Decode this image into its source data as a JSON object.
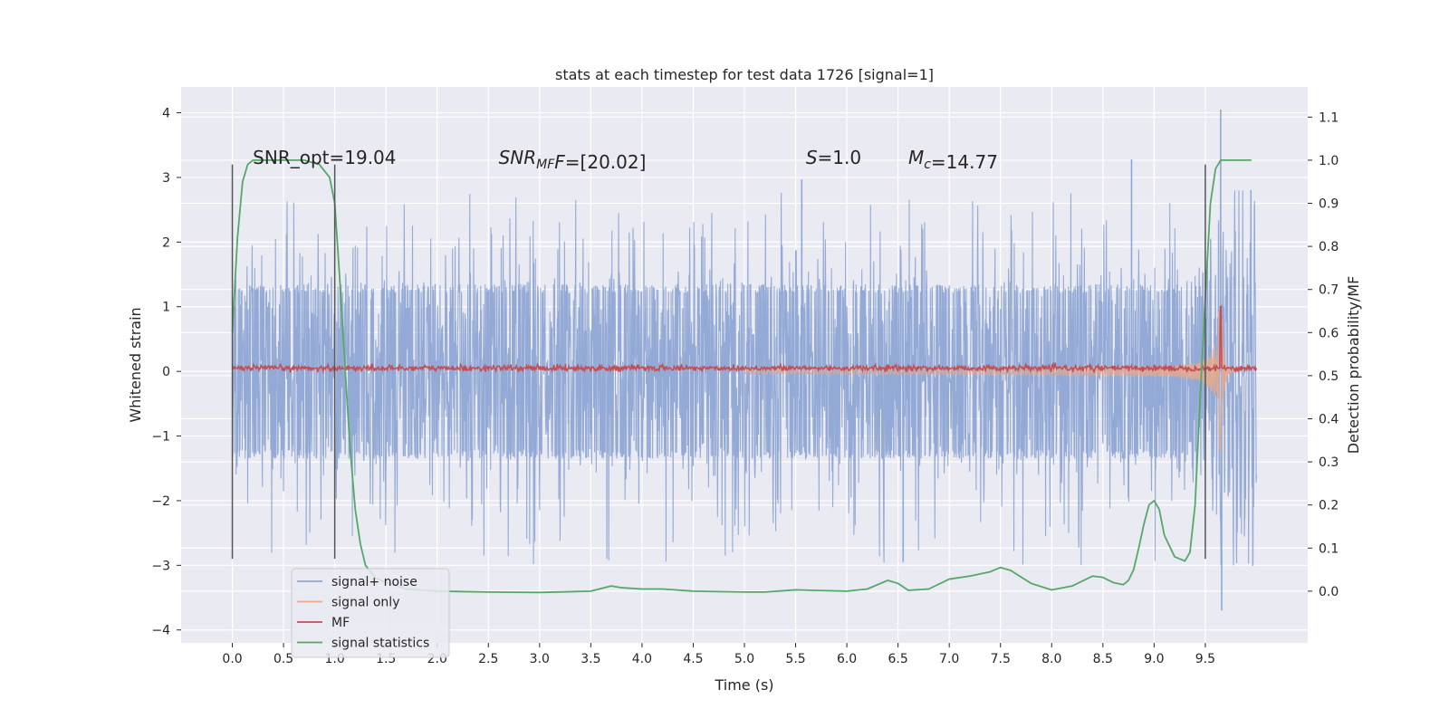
{
  "chart_data": {
    "type": "line",
    "title": "stats at each timestep for test data 1726 [signal=1]",
    "xlabel": "Time (s)",
    "ylabel": "Whitened strain",
    "y2label": "Detection probability/MF",
    "xlim": [
      -0.5,
      10.5
    ],
    "ylim": [
      -4.2,
      4.4
    ],
    "y2lim": [
      -0.12,
      1.17
    ],
    "xticks": [
      0.0,
      0.5,
      1.0,
      1.5,
      2.0,
      2.5,
      3.0,
      3.5,
      4.0,
      4.5,
      5.0,
      5.5,
      6.0,
      6.5,
      7.0,
      7.5,
      8.0,
      8.5,
      9.0,
      9.5
    ],
    "xtick_labels": [
      "0.0",
      "0.5",
      "1.0",
      "1.5",
      "2.0",
      "2.5",
      "3.0",
      "3.5",
      "4.0",
      "4.5",
      "5.0",
      "5.5",
      "6.0",
      "6.5",
      "7.0",
      "7.5",
      "8.0",
      "8.5",
      "9.0",
      "9.5"
    ],
    "yticks": [
      -4,
      -3,
      -2,
      -1,
      0,
      1,
      2,
      3,
      4
    ],
    "ytick_labels": [
      "−4",
      "−3",
      "−2",
      "−1",
      "0",
      "1",
      "2",
      "3",
      "4"
    ],
    "y2ticks": [
      0.0,
      0.1,
      0.2,
      0.3,
      0.4,
      0.5,
      0.6,
      0.7,
      0.8,
      0.9,
      1.0,
      1.1
    ],
    "y2tick_labels": [
      "0.0",
      "0.1",
      "0.2",
      "0.3",
      "0.4",
      "0.5",
      "0.6",
      "0.7",
      "0.8",
      "0.9",
      "1.0",
      "1.1"
    ],
    "grid": true,
    "legend_position": "lower-left",
    "annotations": [
      {
        "parts": [
          {
            "t": "SNR_opt=19.04",
            "i": false
          }
        ],
        "x": 0.2,
        "y": 3.15
      },
      {
        "parts": [
          {
            "t": "SNR",
            "i": true
          },
          {
            "t": "MF",
            "i": true,
            "sub": true
          },
          {
            "t": "F",
            "i": true
          },
          {
            "t": "=[20.02]",
            "i": false
          }
        ],
        "x": 2.6,
        "y": 3.15
      },
      {
        "parts": [
          {
            "t": "S",
            "i": true
          },
          {
            "t": "=1.0",
            "i": false
          }
        ],
        "x": 5.6,
        "y": 3.15
      },
      {
        "parts": [
          {
            "t": "M",
            "i": true
          },
          {
            "t": "c",
            "i": true,
            "sub": true
          },
          {
            "t": "=14.77",
            "i": false
          }
        ],
        "x": 6.6,
        "y": 3.15
      }
    ],
    "vlines": [
      {
        "x": 0.0,
        "y_top": 3.2,
        "y_bottom": -2.9
      },
      {
        "x": 1.0,
        "y_top": 3.2,
        "y_bottom": -2.9
      },
      {
        "x": 9.5,
        "y_top": 3.2,
        "y_bottom": -2.9
      }
    ],
    "series": [
      {
        "name": "signal+ noise",
        "color": "#8fa7d4",
        "axis": "left",
        "kind": "noise",
        "t_start": 0.0,
        "t_end": 10.0,
        "envelope": 1.35,
        "peak_max": 2.8,
        "peak_min": -3.0,
        "notable_spikes": [
          {
            "x": 9.65,
            "y": 4.05
          },
          {
            "x": 9.66,
            "y": -3.7
          },
          {
            "x": 8.78,
            "y": 3.28
          },
          {
            "x": 6.55,
            "y": -2.95
          },
          {
            "x": 5.56,
            "y": 2.97
          }
        ]
      },
      {
        "name": "signal only",
        "color": "#e8a98c",
        "axis": "left",
        "kind": "chirp",
        "t_start": 5.0,
        "t_merger": 9.65,
        "amp_start": 0.05,
        "amp_peak": 3.3
      },
      {
        "name": "MF",
        "color": "#c44e52",
        "axis": "left",
        "kind": "flat-noise",
        "t_start": 0.0,
        "t_end": 10.0,
        "level": 0.05,
        "jitter": 0.05,
        "peak": {
          "x": 9.65,
          "y": 1.0
        }
      },
      {
        "name": "signal statistics",
        "color": "#55a868",
        "axis": "right",
        "x": [
          0.0,
          0.05,
          0.1,
          0.15,
          0.2,
          0.3,
          0.5,
          0.7,
          0.85,
          0.95,
          1.0,
          1.05,
          1.1,
          1.15,
          1.2,
          1.25,
          1.3,
          1.4,
          1.5,
          1.7,
          2.0,
          2.5,
          3.0,
          3.5,
          3.7,
          3.8,
          4.0,
          4.2,
          4.5,
          5.0,
          5.2,
          5.5,
          6.0,
          6.2,
          6.4,
          6.5,
          6.6,
          6.8,
          7.0,
          7.2,
          7.4,
          7.5,
          7.6,
          7.8,
          8.0,
          8.2,
          8.4,
          8.5,
          8.6,
          8.7,
          8.75,
          8.8,
          8.85,
          8.9,
          8.95,
          9.0,
          9.05,
          9.1,
          9.2,
          9.3,
          9.35,
          9.4,
          9.45,
          9.5,
          9.55,
          9.6,
          9.65,
          9.7,
          9.8,
          9.95
        ],
        "values": [
          0.6,
          0.82,
          0.95,
          0.99,
          1.0,
          1.0,
          1.0,
          1.0,
          0.99,
          0.96,
          0.9,
          0.72,
          0.52,
          0.33,
          0.19,
          0.11,
          0.06,
          0.03,
          0.02,
          0.005,
          0.0,
          -0.002,
          -0.003,
          0.0,
          0.012,
          0.008,
          0.005,
          0.005,
          0.0,
          -0.002,
          -0.002,
          0.003,
          0.0,
          0.005,
          0.025,
          0.018,
          0.002,
          0.005,
          0.028,
          0.035,
          0.045,
          0.055,
          0.048,
          0.018,
          0.003,
          0.012,
          0.035,
          0.032,
          0.02,
          0.015,
          0.025,
          0.05,
          0.1,
          0.155,
          0.2,
          0.21,
          0.19,
          0.13,
          0.08,
          0.07,
          0.09,
          0.2,
          0.45,
          0.68,
          0.9,
          0.98,
          1.0,
          1.0,
          1.0,
          1.0
        ]
      }
    ]
  }
}
